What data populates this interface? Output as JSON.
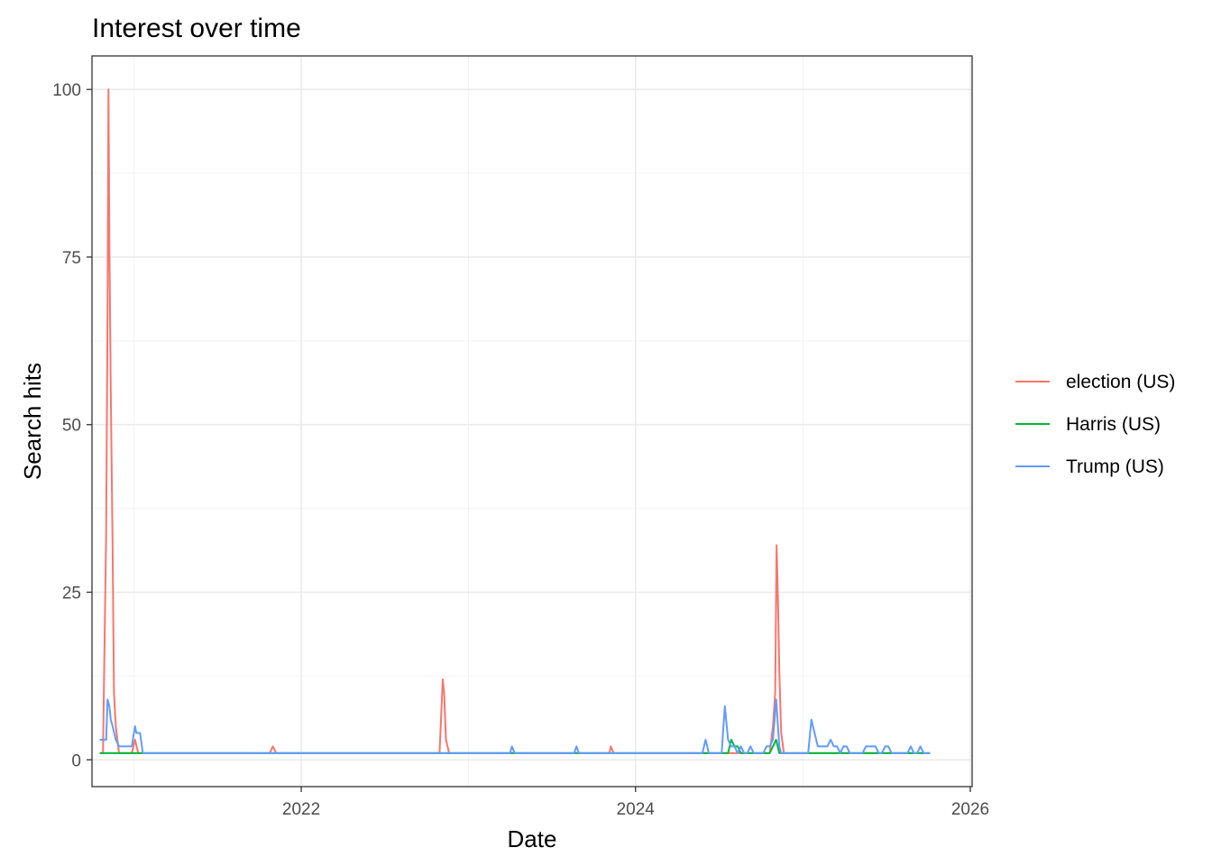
{
  "chart_data": {
    "type": "line",
    "title": "Interest over time",
    "xlabel": "Date",
    "ylabel": "Search hits",
    "x_type": "date",
    "xlim": [
      "2020-10-01",
      "2026-01-05"
    ],
    "ylim": [
      -4,
      105
    ],
    "x_ticks": [
      {
        "value": "2022-01-01",
        "label": "2022"
      },
      {
        "value": "2024-01-01",
        "label": "2024"
      },
      {
        "value": "2026-01-01",
        "label": "2026"
      }
    ],
    "y_ticks": [
      0,
      25,
      50,
      75,
      100
    ],
    "grid": true,
    "legend_position": "right",
    "series": [
      {
        "name": "election (US)",
        "color": "#F8766D",
        "points": [
          [
            "2020-10-18",
            1
          ],
          [
            "2020-10-25",
            1
          ],
          [
            "2020-11-01",
            34
          ],
          [
            "2020-11-04",
            67
          ],
          [
            "2020-11-06",
            100
          ],
          [
            "2020-11-08",
            77
          ],
          [
            "2020-11-11",
            55
          ],
          [
            "2020-11-15",
            32
          ],
          [
            "2020-11-18",
            10
          ],
          [
            "2020-11-22",
            5
          ],
          [
            "2020-11-29",
            1
          ],
          [
            "2020-12-27",
            1
          ],
          [
            "2021-01-03",
            3
          ],
          [
            "2021-01-10",
            1
          ],
          [
            "2021-10-24",
            1
          ],
          [
            "2021-10-31",
            2
          ],
          [
            "2021-11-07",
            1
          ],
          [
            "2022-10-30",
            1
          ],
          [
            "2022-11-06",
            12
          ],
          [
            "2022-11-09",
            10
          ],
          [
            "2022-11-13",
            3
          ],
          [
            "2022-11-20",
            1
          ],
          [
            "2023-11-05",
            1
          ],
          [
            "2023-11-08",
            2
          ],
          [
            "2023-11-14",
            1
          ],
          [
            "2024-10-20",
            1
          ],
          [
            "2024-10-27",
            5
          ],
          [
            "2024-11-01",
            10
          ],
          [
            "2024-11-04",
            32
          ],
          [
            "2024-11-07",
            24
          ],
          [
            "2024-11-10",
            13
          ],
          [
            "2024-11-14",
            4
          ],
          [
            "2024-11-20",
            1
          ],
          [
            "2025-10-05",
            1
          ]
        ]
      },
      {
        "name": "Harris (US)",
        "color": "#00BA38",
        "points": [
          [
            "2020-10-18",
            1
          ],
          [
            "2020-11-01",
            1
          ],
          [
            "2020-11-08",
            1
          ],
          [
            "2021-01-10",
            1
          ],
          [
            "2024-07-14",
            1
          ],
          [
            "2024-07-21",
            1
          ],
          [
            "2024-07-28",
            3
          ],
          [
            "2024-08-04",
            2
          ],
          [
            "2024-08-11",
            2
          ],
          [
            "2024-08-18",
            1
          ],
          [
            "2024-10-20",
            1
          ],
          [
            "2024-10-27",
            2
          ],
          [
            "2024-11-03",
            3
          ],
          [
            "2024-11-10",
            1
          ],
          [
            "2025-10-05",
            1
          ]
        ]
      },
      {
        "name": "Trump (US)",
        "color": "#619CFF",
        "points": [
          [
            "2020-10-18",
            3
          ],
          [
            "2020-10-25",
            3
          ],
          [
            "2020-11-01",
            3
          ],
          [
            "2020-11-04",
            9
          ],
          [
            "2020-11-08",
            8
          ],
          [
            "2020-11-11",
            6
          ],
          [
            "2020-11-15",
            5
          ],
          [
            "2020-11-22",
            3
          ],
          [
            "2020-11-29",
            2
          ],
          [
            "2020-12-06",
            2
          ],
          [
            "2020-12-20",
            2
          ],
          [
            "2020-12-27",
            2
          ],
          [
            "2021-01-03",
            5
          ],
          [
            "2021-01-06",
            4
          ],
          [
            "2021-01-10",
            4
          ],
          [
            "2021-01-14",
            4
          ],
          [
            "2021-01-20",
            1
          ],
          [
            "2023-04-02",
            1
          ],
          [
            "2023-04-06",
            2
          ],
          [
            "2023-04-12",
            1
          ],
          [
            "2023-08-20",
            1
          ],
          [
            "2023-08-25",
            2
          ],
          [
            "2023-08-30",
            1
          ],
          [
            "2024-05-26",
            1
          ],
          [
            "2024-06-02",
            3
          ],
          [
            "2024-06-09",
            1
          ],
          [
            "2024-07-07",
            1
          ],
          [
            "2024-07-14",
            8
          ],
          [
            "2024-07-21",
            3
          ],
          [
            "2024-07-28",
            2
          ],
          [
            "2024-08-04",
            2
          ],
          [
            "2024-08-11",
            1
          ],
          [
            "2024-08-18",
            2
          ],
          [
            "2024-08-25",
            1
          ],
          [
            "2024-09-01",
            1
          ],
          [
            "2024-09-08",
            2
          ],
          [
            "2024-09-15",
            1
          ],
          [
            "2024-10-06",
            1
          ],
          [
            "2024-10-13",
            2
          ],
          [
            "2024-10-20",
            2
          ],
          [
            "2024-10-27",
            3
          ],
          [
            "2024-11-03",
            9
          ],
          [
            "2024-11-07",
            5
          ],
          [
            "2024-11-10",
            2
          ],
          [
            "2024-11-14",
            1
          ],
          [
            "2025-01-12",
            1
          ],
          [
            "2025-01-19",
            6
          ],
          [
            "2025-01-26",
            4
          ],
          [
            "2025-02-02",
            2
          ],
          [
            "2025-02-23",
            2
          ],
          [
            "2025-03-02",
            3
          ],
          [
            "2025-03-09",
            2
          ],
          [
            "2025-03-16",
            2
          ],
          [
            "2025-03-23",
            1
          ],
          [
            "2025-03-30",
            2
          ],
          [
            "2025-04-06",
            2
          ],
          [
            "2025-04-13",
            1
          ],
          [
            "2025-05-11",
            1
          ],
          [
            "2025-05-18",
            2
          ],
          [
            "2025-06-08",
            2
          ],
          [
            "2025-06-15",
            1
          ],
          [
            "2025-06-22",
            1
          ],
          [
            "2025-06-29",
            2
          ],
          [
            "2025-07-06",
            2
          ],
          [
            "2025-07-13",
            1
          ],
          [
            "2025-08-17",
            1
          ],
          [
            "2025-08-24",
            2
          ],
          [
            "2025-08-31",
            1
          ],
          [
            "2025-09-07",
            1
          ],
          [
            "2025-09-14",
            2
          ],
          [
            "2025-09-21",
            1
          ],
          [
            "2025-10-05",
            1
          ]
        ]
      }
    ]
  }
}
